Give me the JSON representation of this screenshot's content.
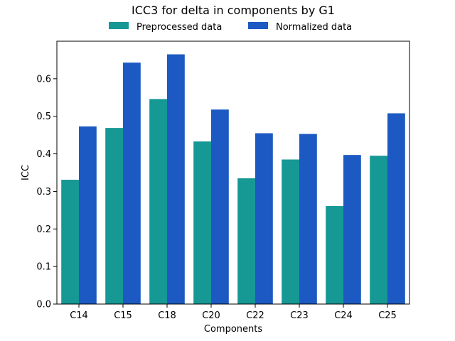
{
  "colors": {
    "background": "#ffffff",
    "axis": "#000000",
    "preprocessed": "#169895",
    "normalized": "#1c59c2"
  },
  "chart_data": {
    "type": "bar",
    "title": "ICC3 for delta in components by G1",
    "xlabel": "Components",
    "ylabel": "ICC",
    "categories": [
      "C14",
      "C15",
      "C18",
      "C20",
      "C22",
      "C23",
      "C24",
      "C25"
    ],
    "series": [
      {
        "name": "Preprocessed data",
        "color": "#169895",
        "values": [
          0.331,
          0.469,
          0.546,
          0.433,
          0.335,
          0.385,
          0.261,
          0.395
        ]
      },
      {
        "name": "Normalized data",
        "color": "#1c59c2",
        "values": [
          0.473,
          0.643,
          0.665,
          0.518,
          0.455,
          0.453,
          0.397,
          0.508
        ]
      }
    ],
    "ylim": [
      0,
      0.7
    ],
    "yticks": [
      0.0,
      0.1,
      0.2,
      0.3,
      0.4,
      0.5,
      0.6
    ],
    "ytick_labels": [
      "0.0",
      "0.1",
      "0.2",
      "0.3",
      "0.4",
      "0.5",
      "0.6"
    ],
    "legend_position": "top-center",
    "grid": false
  }
}
